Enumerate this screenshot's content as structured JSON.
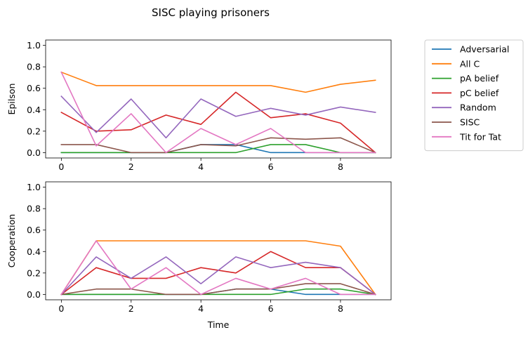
{
  "figure": {
    "title": "SISC playing prisoners"
  },
  "chart_data": [
    {
      "type": "line",
      "ylabel": "Epilson",
      "xlabel": "",
      "xlim": [
        -0.45,
        9.45
      ],
      "ylim": [
        -0.05,
        1.05
      ],
      "xticks": [
        "0",
        "2",
        "4",
        "6",
        "8"
      ],
      "yticks": [
        "0.0",
        "0.2",
        "0.4",
        "0.6",
        "0.8",
        "1.0"
      ],
      "grid": false,
      "x": [
        0,
        1,
        2,
        3,
        4,
        5,
        6,
        7,
        8,
        9
      ],
      "series": [
        {
          "name": "Adversarial",
          "color": "#1f77b4",
          "values": [
            0.0,
            0.0,
            0.0,
            0.0,
            0.075,
            0.075,
            0.0,
            0.0,
            0.0,
            0.0
          ]
        },
        {
          "name": "All C",
          "color": "#ff7f0e",
          "values": [
            0.75,
            0.625,
            0.625,
            0.625,
            0.625,
            0.625,
            0.625,
            0.563,
            0.637,
            0.675
          ]
        },
        {
          "name": "pA belief",
          "color": "#2ca02c",
          "values": [
            0.0,
            0.0,
            0.0,
            0.0,
            0.0,
            0.0,
            0.075,
            0.075,
            0.0,
            0.0
          ]
        },
        {
          "name": "pC belief",
          "color": "#d62728",
          "values": [
            0.375,
            0.2,
            0.213,
            0.35,
            0.263,
            0.563,
            0.325,
            0.362,
            0.275,
            0.0
          ]
        },
        {
          "name": "Random",
          "color": "#9467bd",
          "values": [
            0.525,
            0.188,
            0.5,
            0.138,
            0.5,
            0.338,
            0.413,
            0.35,
            0.425,
            0.375
          ]
        },
        {
          "name": "SISC",
          "color": "#8c564b",
          "values": [
            0.075,
            0.075,
            0.0,
            0.0,
            0.075,
            0.063,
            0.138,
            0.125,
            0.138,
            0.0
          ]
        },
        {
          "name": "Tit for Tat",
          "color": "#e377c2",
          "values": [
            0.75,
            0.063,
            0.363,
            0.0,
            0.225,
            0.075,
            0.225,
            0.0,
            0.0,
            0.0
          ]
        }
      ]
    },
    {
      "type": "line",
      "ylabel": "Cooperation",
      "xlabel": "Time",
      "xlim": [
        -0.45,
        9.45
      ],
      "ylim": [
        -0.05,
        1.05
      ],
      "xticks": [
        "0",
        "2",
        "4",
        "6",
        "8"
      ],
      "yticks": [
        "0.0",
        "0.2",
        "0.4",
        "0.6",
        "0.8",
        "1.0"
      ],
      "grid": false,
      "x": [
        0,
        1,
        2,
        3,
        4,
        5,
        6,
        7,
        8,
        9
      ],
      "series": [
        {
          "name": "Adversarial",
          "color": "#1f77b4",
          "values": [
            0.0,
            0.0,
            0.0,
            0.0,
            0.0,
            0.05,
            0.05,
            0.0,
            0.0,
            0.0
          ]
        },
        {
          "name": "All C",
          "color": "#ff7f0e",
          "values": [
            0.0,
            0.5,
            0.5,
            0.5,
            0.5,
            0.5,
            0.5,
            0.5,
            0.45,
            0.0
          ]
        },
        {
          "name": "pA belief",
          "color": "#2ca02c",
          "values": [
            0.0,
            0.0,
            0.0,
            0.0,
            0.0,
            0.0,
            0.0,
            0.05,
            0.05,
            0.0
          ]
        },
        {
          "name": "pC belief",
          "color": "#d62728",
          "values": [
            0.0,
            0.25,
            0.15,
            0.15,
            0.25,
            0.2,
            0.4,
            0.25,
            0.25,
            0.0
          ]
        },
        {
          "name": "Random",
          "color": "#9467bd",
          "values": [
            0.0,
            0.35,
            0.15,
            0.35,
            0.1,
            0.35,
            0.25,
            0.3,
            0.25,
            0.0
          ]
        },
        {
          "name": "SISC",
          "color": "#8c564b",
          "values": [
            0.0,
            0.05,
            0.05,
            0.0,
            0.0,
            0.05,
            0.05,
            0.1,
            0.1,
            0.0
          ]
        },
        {
          "name": "Tit for Tat",
          "color": "#e377c2",
          "values": [
            0.0,
            0.5,
            0.05,
            0.25,
            0.0,
            0.15,
            0.05,
            0.15,
            0.0,
            0.0
          ]
        }
      ]
    }
  ],
  "legend": {
    "placement": "outside-right-top",
    "items": [
      "Adversarial",
      "All C",
      "pA belief",
      "pC belief",
      "Random",
      "SISC",
      "Tit for Tat"
    ]
  }
}
